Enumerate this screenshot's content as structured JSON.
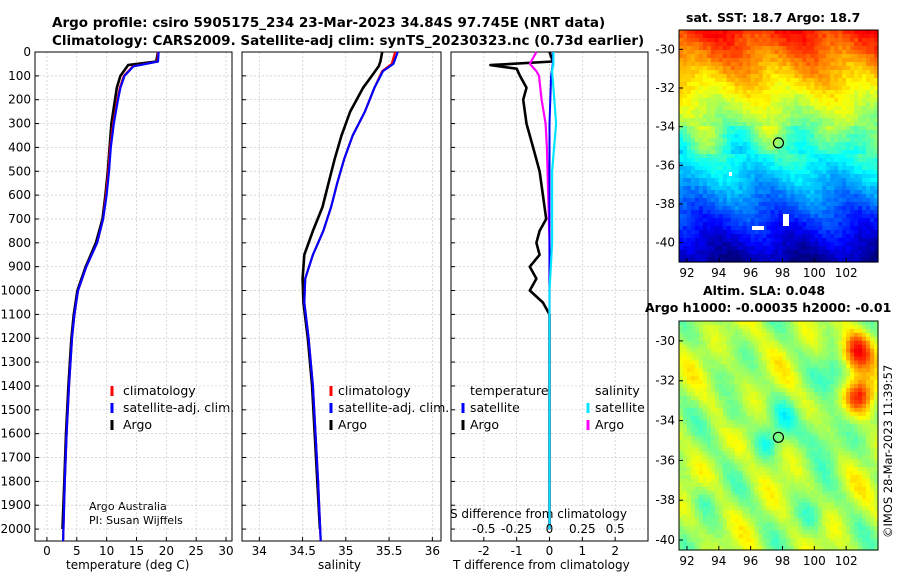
{
  "header": {
    "line1": "Argo profile: csiro 5905175_234 23-Mar-2023 34.84S 97.745E (NRT data)",
    "line2": "Climatology: CARS2009. Satellite-adj clim: synTS_20230323.nc (0.73d earlier)"
  },
  "credits": {
    "org": "Argo Australia",
    "pi": "PI: Susan Wijffels"
  },
  "stamp": "©IMOS 28-Mar-2023 11:39:57",
  "colors": {
    "climatology": "#ff0000",
    "satellite": "#0000ff",
    "argo": "#000000",
    "sat_salinity": "#00e5ff",
    "argo_salinity": "#ff00ff"
  },
  "chart_data": [
    {
      "type": "line",
      "id": "temperature",
      "xlabel": "temperature (deg C)",
      "ylabel": "",
      "xlim": [
        -2,
        31
      ],
      "ylim": [
        2050,
        0
      ],
      "xticks": [
        0,
        5,
        10,
        15,
        20,
        25,
        30
      ],
      "yticks": [
        0,
        100,
        200,
        300,
        400,
        500,
        600,
        700,
        800,
        900,
        1000,
        1100,
        1200,
        1300,
        1400,
        1500,
        1600,
        1700,
        1800,
        1900,
        2000
      ],
      "grid": true,
      "legend": {
        "placement": "lower-right",
        "entries": [
          "climatology",
          "satellite-adj. clim.",
          "Argo"
        ]
      },
      "series": [
        {
          "name": "climatology",
          "depth": [
            0,
            40,
            60,
            100,
            150,
            200,
            300,
            400,
            500,
            600,
            700,
            800,
            900,
            1000,
            1100,
            1200,
            1400,
            1600,
            1800,
            2050
          ],
          "values": [
            18.6,
            18.5,
            14.4,
            12.9,
            12.2,
            11.8,
            11.1,
            10.6,
            10.3,
            9.9,
            9.4,
            8.4,
            6.6,
            5.2,
            4.6,
            4.2,
            3.7,
            3.3,
            3.0,
            2.7
          ]
        },
        {
          "name": "satellite-adj. clim.",
          "depth": [
            0,
            40,
            60,
            100,
            150,
            200,
            300,
            400,
            500,
            600,
            700,
            800,
            900,
            1000,
            1100,
            1200,
            1400,
            1600,
            1800,
            2050
          ],
          "values": [
            18.7,
            18.6,
            14.5,
            13.0,
            12.3,
            11.9,
            11.2,
            10.7,
            10.4,
            10.0,
            9.4,
            8.4,
            6.6,
            5.2,
            4.6,
            4.2,
            3.7,
            3.3,
            3.0,
            2.7
          ]
        },
        {
          "name": "Argo",
          "depth": [
            0,
            40,
            55,
            100,
            150,
            200,
            300,
            400,
            500,
            600,
            700,
            800,
            900,
            1000,
            1100,
            1200,
            1400,
            1600,
            1800,
            2000
          ],
          "values": [
            18.6,
            18.3,
            13.6,
            12.3,
            11.7,
            11.4,
            10.8,
            10.5,
            10.2,
            9.8,
            9.3,
            8.2,
            6.5,
            5.1,
            4.5,
            4.1,
            3.6,
            3.2,
            2.9,
            2.6
          ]
        }
      ]
    },
    {
      "type": "line",
      "id": "salinity",
      "xlabel": "salinity",
      "ylabel": "",
      "xlim": [
        33.8,
        36.1
      ],
      "ylim": [
        2050,
        0
      ],
      "xticks": [
        34,
        34.5,
        35,
        35.5,
        36
      ],
      "grid": true,
      "legend": {
        "placement": "lower-right",
        "entries": [
          "climatology",
          "satellite-adj. clim.",
          "Argo"
        ]
      },
      "series": [
        {
          "name": "climatology",
          "depth": [
            0,
            50,
            80,
            150,
            250,
            350,
            450,
            550,
            650,
            750,
            850,
            950,
            1050,
            1200,
            1400,
            1600,
            1800,
            2050
          ],
          "values": [
            35.57,
            35.53,
            35.42,
            35.33,
            35.22,
            35.08,
            34.98,
            34.9,
            34.83,
            34.74,
            34.62,
            34.53,
            34.52,
            34.57,
            34.62,
            34.65,
            34.68,
            34.71
          ]
        },
        {
          "name": "satellite-adj. clim.",
          "depth": [
            0,
            50,
            80,
            150,
            250,
            350,
            450,
            550,
            650,
            750,
            850,
            950,
            1050,
            1200,
            1400,
            1600,
            1800,
            2050
          ],
          "values": [
            35.6,
            35.55,
            35.43,
            35.33,
            35.22,
            35.08,
            34.98,
            34.9,
            34.83,
            34.74,
            34.62,
            34.53,
            34.52,
            34.57,
            34.62,
            34.65,
            34.68,
            34.71
          ]
        },
        {
          "name": "Argo",
          "depth": [
            0,
            40,
            60,
            100,
            150,
            250,
            350,
            450,
            550,
            650,
            750,
            850,
            950,
            1050,
            1200,
            1400,
            1600,
            1800,
            2000
          ],
          "values": [
            35.42,
            35.4,
            35.38,
            35.3,
            35.2,
            35.05,
            34.95,
            34.87,
            34.8,
            34.73,
            34.62,
            34.52,
            34.5,
            34.51,
            34.56,
            34.61,
            34.64,
            34.67,
            34.7
          ]
        }
      ]
    },
    {
      "type": "line",
      "id": "difference",
      "xlabel": "T difference from climatology",
      "xlabel2": "S difference from climatology",
      "xlim": [
        -3,
        3
      ],
      "ylim": [
        2050,
        0
      ],
      "xticks": [
        -2,
        -1,
        0,
        1,
        2
      ],
      "xticklabels": [
        "-2",
        "-1",
        "0",
        "1",
        "2"
      ],
      "xticks2": [
        -0.5,
        -0.25,
        0,
        0.25,
        0.5
      ],
      "xticklabels2": [
        "-0.5",
        "-0.25",
        "0",
        "0.25",
        "0.5"
      ],
      "grid": true,
      "legend": {
        "placement": "lower",
        "headers": [
          "temperature",
          "salinity"
        ],
        "entries": [
          "satellite",
          "Argo",
          "satellite",
          "Argo"
        ]
      },
      "series": [
        {
          "name": "Argo T diff",
          "depth": [
            0,
            40,
            55,
            70,
            100,
            150,
            200,
            300,
            400,
            500,
            600,
            700,
            750,
            800,
            850,
            900,
            950,
            1000,
            1050,
            1100,
            1200,
            1500,
            2000
          ],
          "values": [
            0.0,
            0.1,
            -1.8,
            -1.0,
            -0.9,
            -0.7,
            -0.8,
            -0.7,
            -0.5,
            -0.3,
            -0.2,
            -0.1,
            -0.3,
            -0.4,
            -0.3,
            -0.6,
            -0.4,
            -0.6,
            -0.2,
            0.0,
            0.0,
            0.0,
            0.0
          ]
        },
        {
          "name": "Argo S diff",
          "depth": [
            0,
            50,
            80,
            100,
            200,
            300,
            400,
            600,
            800,
            1000,
            1200,
            1500,
            2000
          ],
          "values": [
            -0.1,
            -0.15,
            -0.1,
            -0.08,
            -0.06,
            -0.03,
            -0.02,
            -0.01,
            0.0,
            0.0,
            0.0,
            0.0,
            0.0
          ]
        },
        {
          "name": "satellite T diff",
          "depth": [
            0,
            50,
            100,
            300,
            600,
            1000,
            1500,
            2000
          ],
          "values": [
            0.1,
            0.1,
            0.05,
            0.0,
            0.0,
            0.0,
            0.0,
            0.0
          ]
        },
        {
          "name": "satellite S diff",
          "depth": [
            0,
            50,
            80,
            150,
            300,
            500,
            800,
            1000,
            1200,
            1500,
            2000
          ],
          "values": [
            0.03,
            0.03,
            0.02,
            0.03,
            0.05,
            0.02,
            0.02,
            0.0,
            0.0,
            0.0,
            0.0
          ]
        }
      ]
    },
    {
      "type": "heatmap",
      "id": "sst",
      "title": "sat. SST: 18.7 Argo: 18.7",
      "xticks": [
        92,
        94,
        96,
        98,
        100,
        102
      ],
      "yticks": [
        -30,
        -32,
        -34,
        -36,
        -38,
        -40
      ],
      "xlim": [
        91.5,
        104
      ],
      "ylim": [
        -41,
        -29
      ],
      "marker": {
        "lon": 97.745,
        "lat": -34.84
      }
    },
    {
      "type": "heatmap",
      "id": "sla",
      "title1": "Altim. SLA: 0.048",
      "title2": "Argo h1000: -0.00035 h2000: -0.01",
      "xticks": [
        92,
        94,
        96,
        98,
        100,
        102
      ],
      "yticks": [
        -30,
        -32,
        -34,
        -36,
        -38,
        -40
      ],
      "xlim": [
        91.5,
        104
      ],
      "ylim": [
        -40.5,
        -29
      ],
      "marker": {
        "lon": 97.745,
        "lat": -34.84
      }
    }
  ]
}
